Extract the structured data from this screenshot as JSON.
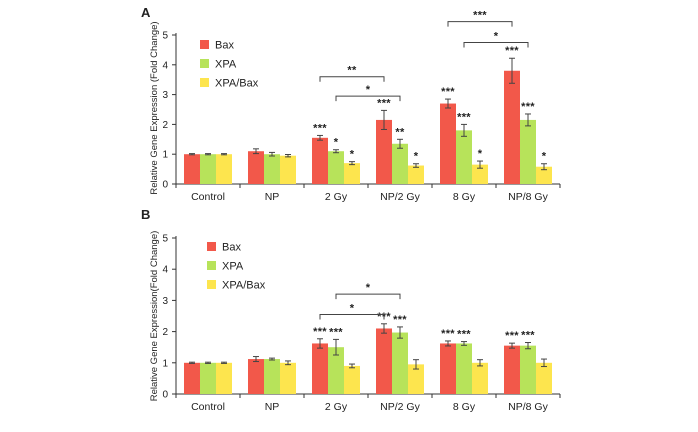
{
  "colors": {
    "Bax": "#f2584a",
    "XPA": "#b7e35a",
    "XPA/Bax": "#fde54e",
    "axis": "#333333",
    "errorbar": "#444444"
  },
  "chart_data": [
    {
      "panel": "A",
      "type": "bar",
      "ylabel": "Relative Gene Expression (Fold Change)",
      "ylim": [
        0,
        5
      ],
      "yticks": [
        "0",
        "1",
        "2",
        "3",
        "4",
        "5"
      ],
      "categories": [
        "Control",
        "NP",
        "2 Gy",
        "NP/2 Gy",
        "8 Gy",
        "NP/8 Gy"
      ],
      "legend_position": "top-left",
      "series": [
        {
          "name": "Bax",
          "values": [
            1.0,
            1.1,
            1.55,
            2.15,
            2.7,
            3.8
          ],
          "errors": [
            0.02,
            0.08,
            0.08,
            0.32,
            0.15,
            0.42
          ],
          "marks": [
            "",
            "",
            "***",
            "***",
            "***",
            "***"
          ]
        },
        {
          "name": "XPA",
          "values": [
            1.0,
            1.0,
            1.1,
            1.35,
            1.8,
            2.15
          ],
          "errors": [
            0.02,
            0.06,
            0.05,
            0.15,
            0.2,
            0.2
          ],
          "marks": [
            "",
            "",
            "*",
            "**",
            "***",
            "***"
          ]
        },
        {
          "name": "XPA/Bax",
          "values": [
            1.0,
            0.95,
            0.7,
            0.62,
            0.65,
            0.58
          ],
          "errors": [
            0.02,
            0.04,
            0.05,
            0.06,
            0.12,
            0.1
          ],
          "marks": [
            "",
            "",
            "*",
            "*",
            "*",
            "*"
          ]
        }
      ],
      "brackets": [
        {
          "from": 2,
          "to": 3,
          "series": "Bax",
          "label": "**",
          "level": 3.6
        },
        {
          "from": 2,
          "to": 3,
          "series": "XPA",
          "label": "*",
          "level": 2.95
        },
        {
          "from": 4,
          "to": 5,
          "series": "Bax",
          "label": "***",
          "level": 5.45
        },
        {
          "from": 4,
          "to": 5,
          "series": "XPA",
          "label": "*",
          "level": 4.75
        }
      ]
    },
    {
      "panel": "B",
      "type": "bar",
      "ylabel": "Relative Gene Expression(Fold Change)",
      "ylim": [
        0,
        5
      ],
      "yticks": [
        "0",
        "1",
        "2",
        "3",
        "4",
        "5"
      ],
      "categories": [
        "Control",
        "NP",
        "2 Gy",
        "NP/2 Gy",
        "8 Gy",
        "NP/8 Gy"
      ],
      "legend_position": "top-left",
      "series": [
        {
          "name": "Bax",
          "values": [
            1.0,
            1.12,
            1.62,
            2.1,
            1.62,
            1.55
          ],
          "errors": [
            0.02,
            0.08,
            0.15,
            0.15,
            0.08,
            0.08
          ],
          "marks": [
            "",
            "",
            "***",
            "***",
            "***",
            "***"
          ]
        },
        {
          "name": "XPA",
          "values": [
            1.0,
            1.12,
            1.5,
            1.97,
            1.62,
            1.55
          ],
          "errors": [
            0.02,
            0.03,
            0.25,
            0.18,
            0.06,
            0.1
          ],
          "marks": [
            "",
            "",
            "***",
            "***",
            "***",
            "***"
          ]
        },
        {
          "name": "XPA/Bax",
          "values": [
            1.0,
            1.0,
            0.9,
            0.95,
            1.0,
            1.0
          ],
          "errors": [
            0.02,
            0.06,
            0.06,
            0.15,
            0.1,
            0.12
          ],
          "marks": [
            "",
            "",
            "",
            "",
            "",
            ""
          ]
        }
      ],
      "brackets": [
        {
          "from": 2,
          "to": 3,
          "series": "Bax",
          "label": "*",
          "level": 2.55
        },
        {
          "from": 2,
          "to": 3,
          "series": "XPA",
          "label": "*",
          "level": 3.2
        }
      ]
    }
  ]
}
